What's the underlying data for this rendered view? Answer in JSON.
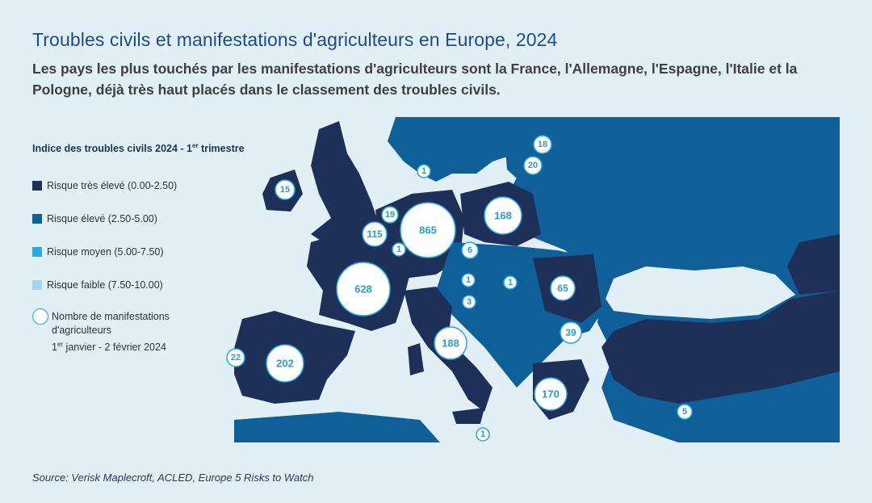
{
  "title": "Troubles civils et manifestations d'agriculteurs en Europe, 2024",
  "subtitle": "Les pays les plus touchés par les manifestations d'agriculteurs sont la France, l'Allemagne, l'Espagne, l'Italie et la Pologne, déjà très haut placés dans le classement des troubles civils.",
  "legend": {
    "title_main": "Indice des troubles civils 2024 - 1",
    "title_sup": "er",
    "title_end": " trimestre",
    "items": [
      {
        "label": "Risque très élevé (0.00-2.50)",
        "color": "#1e3058"
      },
      {
        "label": "Risque élevé (2.50-5.00)",
        "color": "#0f5f98"
      },
      {
        "label": "Risque moyen (5.00-7.50)",
        "color": "#27a9e0"
      },
      {
        "label": "Risque faible (7.50-10.00)",
        "color": "#a6d4ec"
      }
    ],
    "bubble_line1": "Nombre de manifestations",
    "bubble_line2": "d'agriculteurs",
    "bubble_line3_start": "1",
    "bubble_line3_sup": "er",
    "bubble_line3_end": " janvier - 2 février 2024"
  },
  "colors": {
    "sea": "#e0f0f6",
    "very_high": "#1e3058",
    "high": "#0f5f98",
    "bubble_border": "#27a9e0",
    "bubble_text": "#2a9fd6"
  },
  "protests": [
    {
      "country": "Allemagne",
      "count": "865"
    },
    {
      "country": "France",
      "count": "628"
    },
    {
      "country": "Espagne",
      "count": "202"
    },
    {
      "country": "Italie",
      "count": "188"
    },
    {
      "country": "Grèce",
      "count": "170"
    },
    {
      "country": "Pologne",
      "count": "168"
    },
    {
      "country": "Belgique",
      "count": "115"
    },
    {
      "country": "Roumanie",
      "count": "65"
    },
    {
      "country": "Bulgarie",
      "count": "39"
    },
    {
      "country": "Portugal",
      "count": "22"
    },
    {
      "country": "Lituanie",
      "count": "20"
    },
    {
      "country": "Pays-Bas",
      "count": "19"
    },
    {
      "country": "Lettonie",
      "count": "18"
    },
    {
      "country": "Irlande",
      "count": "15"
    },
    {
      "country": "Tchéquie",
      "count": "6"
    },
    {
      "country": "Chypre",
      "count": "5"
    },
    {
      "country": "Slovénie",
      "count": "3"
    },
    {
      "country": "Suède",
      "count": "1"
    },
    {
      "country": "Luxembourg",
      "count": "1"
    },
    {
      "country": "Autriche",
      "count": "1"
    },
    {
      "country": "Hongrie",
      "count": "1"
    },
    {
      "country": "Malte",
      "count": "1"
    }
  ],
  "source": "Source: Verisk Maplecroft, ACLED, Europe 5 Risks to Watch"
}
